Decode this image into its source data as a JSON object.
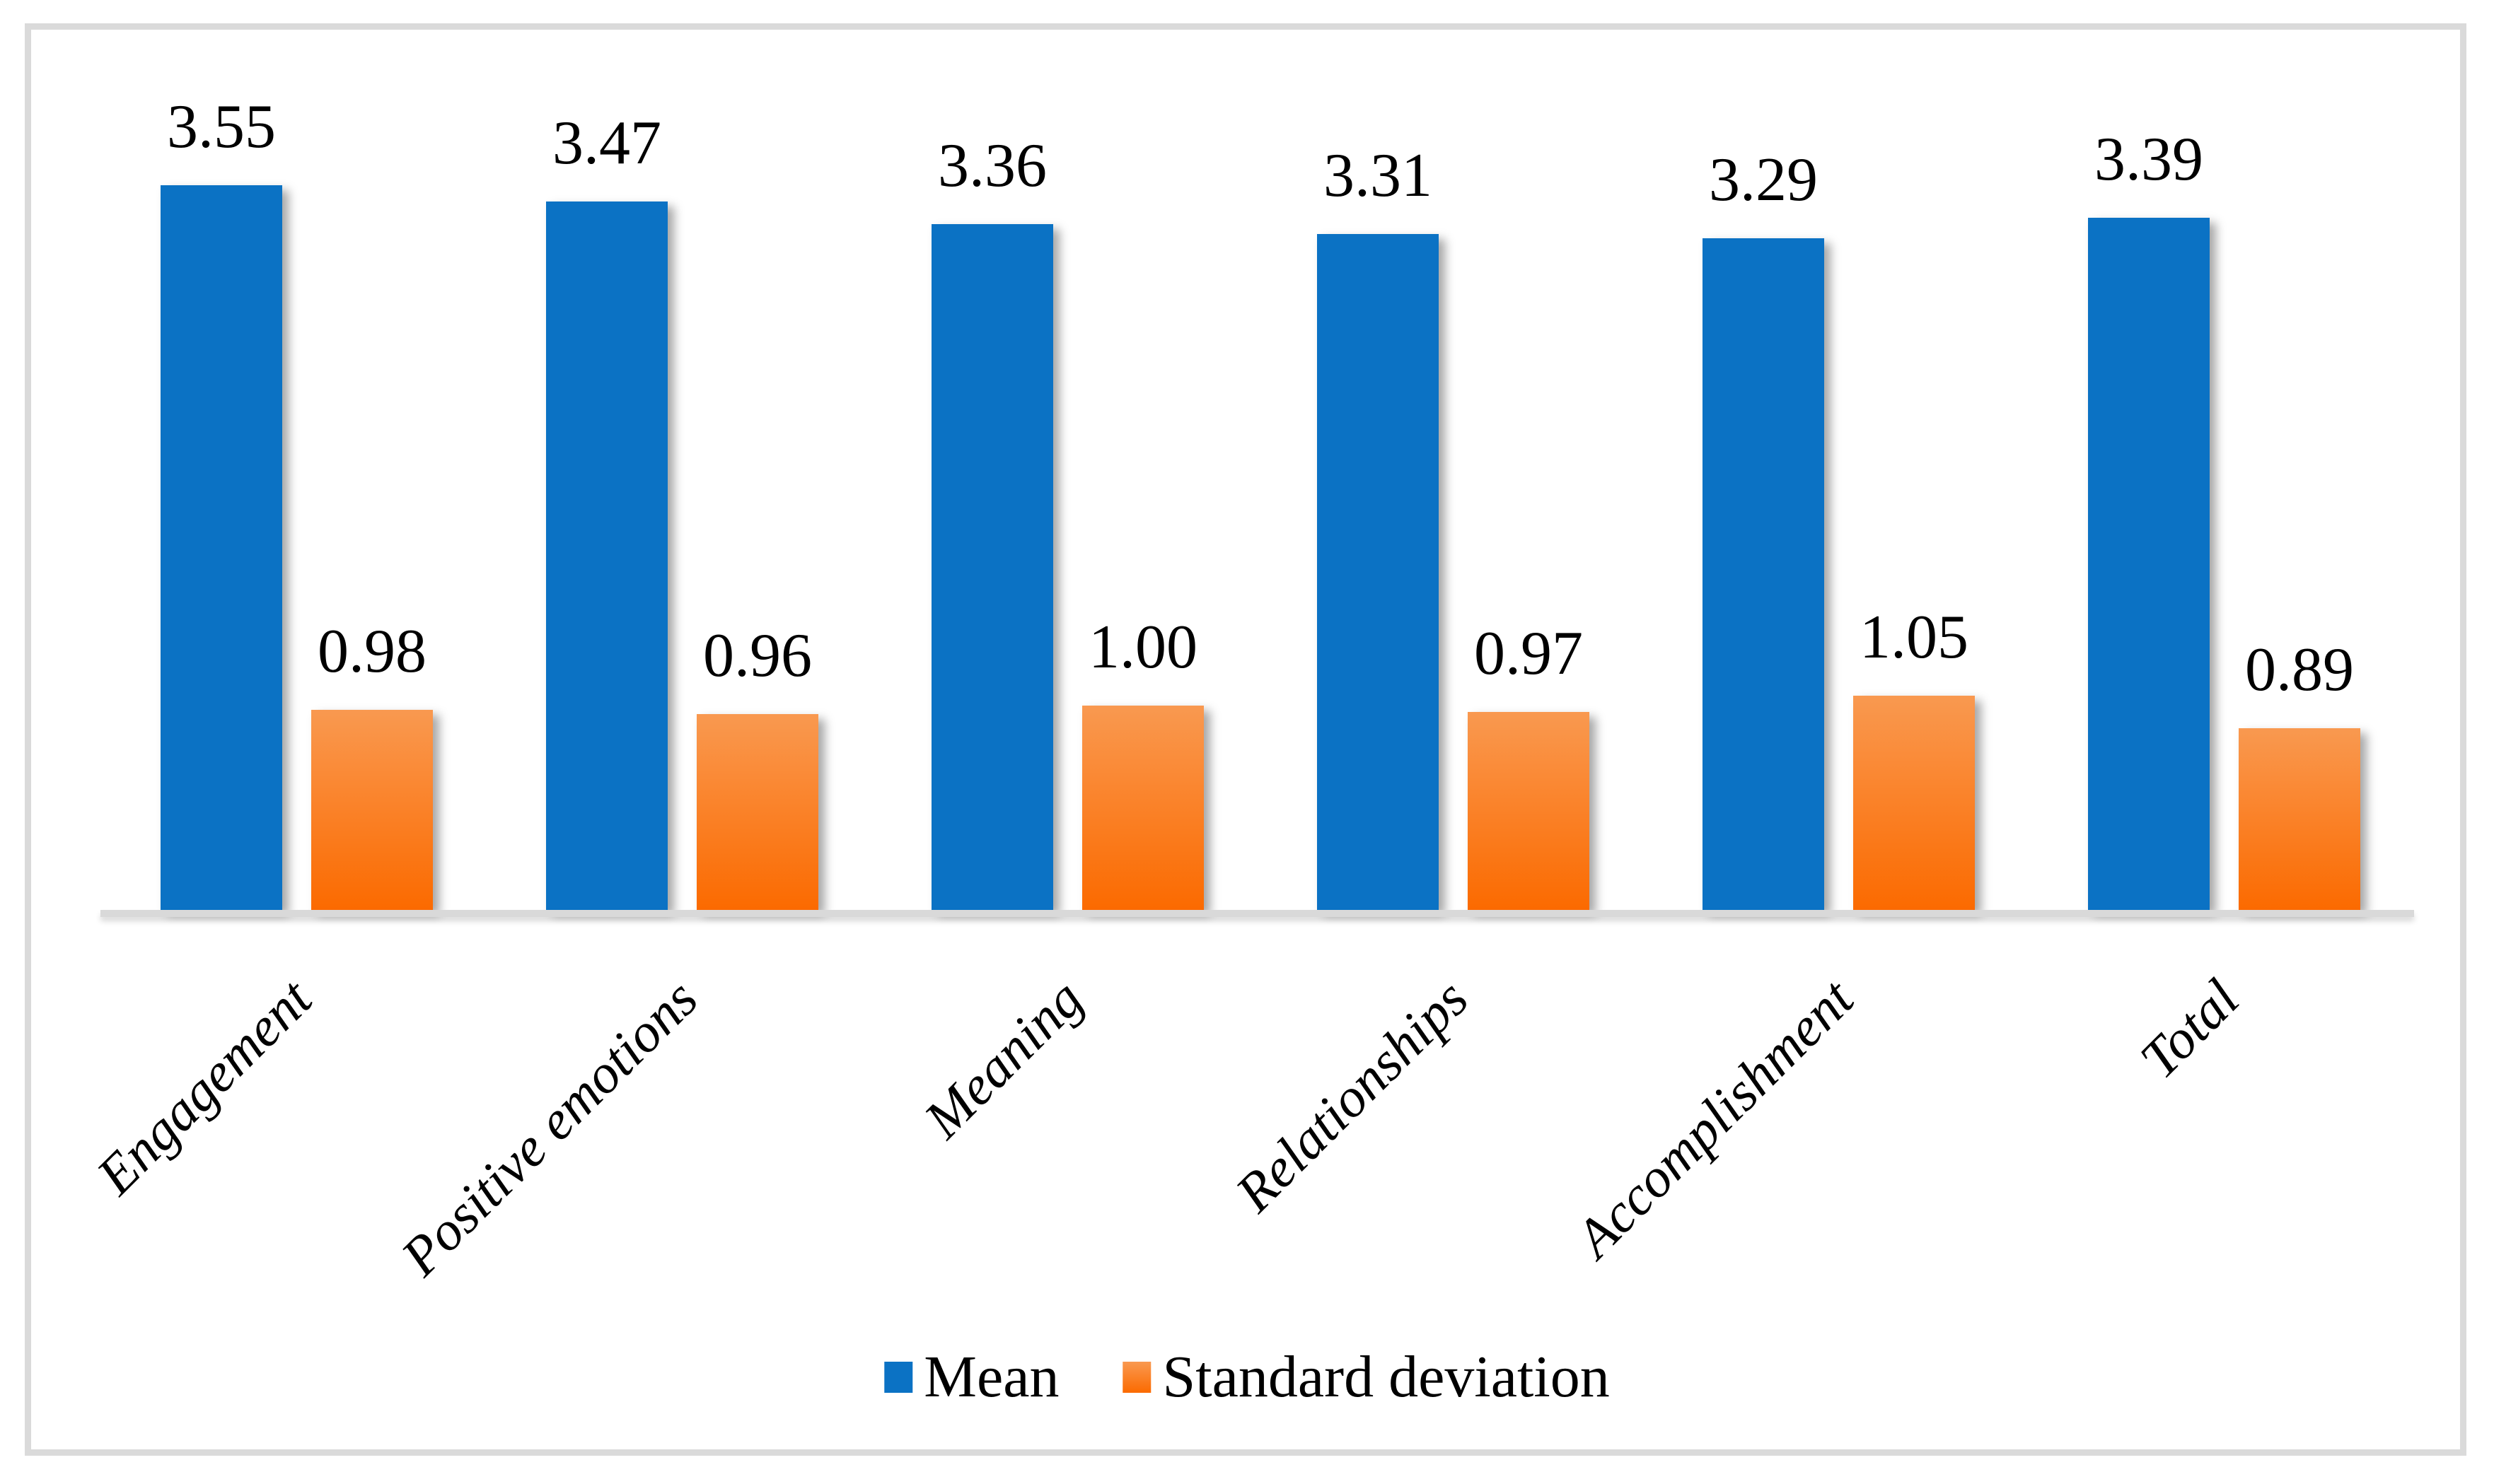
{
  "figure": {
    "background_color": "#ffffff",
    "border_color": "#dadada"
  },
  "axis": {
    "x_axis_line_color": "#d9d9d9"
  },
  "legend": {
    "position": "bottom-center",
    "items": [
      {
        "label": "Mean",
        "swatch_color": "#0b72c4"
      },
      {
        "label": "Standard deviation",
        "swatch_gradient_top": "#f99950",
        "swatch_gradient_bottom": "#fb6a00"
      }
    ]
  },
  "chart_data": {
    "type": "bar",
    "title": "",
    "xlabel": "",
    "ylabel": "",
    "categories": [
      "Engagement",
      "Positive emotions",
      "Meaning",
      "Relationships",
      "Accomplishment",
      "Total"
    ],
    "series": [
      {
        "name": "Mean",
        "values": [
          3.55,
          3.47,
          3.36,
          3.31,
          3.29,
          3.39
        ],
        "labels": [
          "3.55",
          "3.47",
          "3.36",
          "3.31",
          "3.29",
          "3.39"
        ],
        "color": "#0b72c4"
      },
      {
        "name": "Standard deviation",
        "values": [
          0.98,
          0.96,
          1.0,
          0.97,
          1.05,
          0.89
        ],
        "labels": [
          "0.98",
          "0.96",
          "1.00",
          "0.97",
          "1.05",
          "0.89"
        ],
        "color_gradient_top": "#f99950",
        "color_gradient_bottom": "#fb6a00"
      }
    ],
    "ylim": [
      0,
      4.45
    ],
    "grid": false,
    "y_axis_ticks_visible": false,
    "data_labels": "above bars, 2 decimals",
    "category_labels_style": "italic serif, rotated 45 degrees",
    "legend_position": "bottom"
  }
}
